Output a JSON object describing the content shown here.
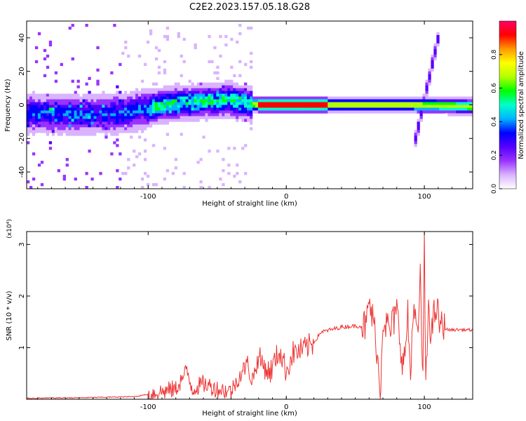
{
  "title": "C2E2.2023.157.05.18.G28",
  "colors": {
    "snr_line": "#ee3333",
    "axis": "#000000",
    "colormap": [
      "#ffffff",
      "#d9b3ff",
      "#9933ff",
      "#5500ff",
      "#0000ff",
      "#00b3ff",
      "#00ffcc",
      "#00ff00",
      "#b3ff00",
      "#ffff00",
      "#ff9900",
      "#ff0000",
      "#ff0066"
    ]
  },
  "chart_data": [
    {
      "type": "heatmap",
      "xlabel": "Height of straight line (km)",
      "ylabel": "Frequency (Hz)",
      "xlim": [
        -188,
        135
      ],
      "ylim": [
        -50,
        50
      ],
      "xticks": [
        -100,
        0,
        100
      ],
      "xtick_labels": [
        "-100",
        "0",
        "100"
      ],
      "yticks": [
        -40,
        -20,
        0,
        20,
        40
      ],
      "ytick_labels": [
        "-40",
        "-20",
        "0",
        "20",
        "40"
      ],
      "colorbar": {
        "label": "Normalized spectral amplitude",
        "range": [
          0,
          1
        ],
        "ticks": [
          0.0,
          0.2,
          0.4,
          0.6,
          0.8
        ],
        "tick_labels": [
          "0.0",
          "0.2",
          "0.4",
          "0.6",
          "0.8"
        ]
      },
      "ridge": [
        [
          -188,
          -5
        ],
        [
          -150,
          -6
        ],
        [
          -120,
          -5
        ],
        [
          -100,
          -2
        ],
        [
          -80,
          1
        ],
        [
          -60,
          2
        ],
        [
          -40,
          3
        ],
        [
          -30,
          1
        ],
        [
          -20,
          0
        ],
        [
          0,
          0
        ],
        [
          50,
          0
        ],
        [
          90,
          0
        ],
        [
          135,
          -1
        ]
      ],
      "diagonal_feature": {
        "x": [
          92,
          110
        ],
        "y": [
          -26,
          40
        ]
      }
    },
    {
      "type": "line",
      "xlabel": "Height of straight line (km)",
      "ylabel": "SNR (10 * v/v)",
      "y_multiplier": "(x10⁴)",
      "xlim": [
        -188,
        135
      ],
      "ylim": [
        0,
        3.25
      ],
      "xticks": [
        -100,
        0,
        100
      ],
      "xtick_labels": [
        "-100",
        "0",
        "100"
      ],
      "yticks": [
        1,
        2,
        3
      ],
      "ytick_labels": [
        "1",
        "2",
        "3"
      ],
      "series": [
        {
          "x": [
            -188,
            -150,
            -110,
            -95,
            -80,
            -72,
            -68,
            -60,
            -50,
            -40,
            -35,
            -28,
            -25,
            -20,
            -12,
            -5,
            0,
            5,
            12,
            20,
            25,
            40,
            50,
            58,
            60,
            65,
            68,
            70,
            75,
            80,
            85,
            88,
            90,
            92,
            95,
            97,
            99,
            100,
            101,
            103,
            105,
            108,
            112,
            118,
            125,
            135
          ],
          "y": [
            0.02,
            0.03,
            0.05,
            0.12,
            0.2,
            0.55,
            0.2,
            0.3,
            0.2,
            0.15,
            0.4,
            0.7,
            0.35,
            0.8,
            0.5,
            0.95,
            0.55,
            0.9,
            0.95,
            1.1,
            1.3,
            1.4,
            1.42,
            1.42,
            1.9,
            1.2,
            0.1,
            1.6,
            1.3,
            1.7,
            0.6,
            1.6,
            0.4,
            1.9,
            1.1,
            2.3,
            0.4,
            3.2,
            0.05,
            1.9,
            1.2,
            1.8,
            1.4,
            1.34,
            1.35,
            1.34
          ]
        }
      ]
    }
  ]
}
